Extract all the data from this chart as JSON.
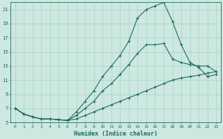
{
  "xlabel": "Humidex (Indice chaleur)",
  "bg_color": "#cce8e0",
  "line_color": "#1a6b5a",
  "grid_color": "#aed4c8",
  "xlim": [
    -0.5,
    23.5
  ],
  "ylim": [
    5,
    22
  ],
  "xticks": [
    0,
    1,
    2,
    3,
    4,
    5,
    6,
    7,
    8,
    9,
    10,
    11,
    12,
    13,
    14,
    15,
    16,
    17,
    18,
    19,
    20,
    21,
    22,
    23
  ],
  "yticks": [
    5,
    7,
    9,
    11,
    13,
    15,
    17,
    19,
    21
  ],
  "line1_x": [
    0,
    1,
    2,
    3,
    4,
    5,
    6,
    7,
    8,
    9,
    10,
    11,
    12,
    13,
    14,
    15,
    16,
    17,
    18,
    19,
    20,
    21,
    22,
    23
  ],
  "line1_y": [
    7.0,
    6.2,
    5.8,
    5.5,
    5.5,
    5.4,
    5.3,
    5.5,
    6.0,
    6.5,
    7.0,
    7.5,
    8.0,
    8.5,
    9.0,
    9.5,
    10.0,
    10.5,
    11.0,
    11.3,
    11.5,
    11.7,
    12.0,
    12.2
  ],
  "line2_x": [
    0,
    1,
    2,
    3,
    4,
    5,
    6,
    7,
    8,
    9,
    10,
    11,
    12,
    13,
    14,
    15,
    16,
    17,
    18,
    19,
    20,
    21,
    22,
    23
  ],
  "line2_y": [
    7.0,
    6.2,
    5.8,
    5.5,
    5.5,
    5.4,
    5.3,
    6.0,
    7.0,
    8.0,
    9.5,
    10.5,
    11.8,
    13.2,
    14.8,
    16.0,
    16.0,
    16.2,
    14.0,
    13.5,
    13.2,
    13.0,
    13.0,
    12.2
  ],
  "line3_x": [
    0,
    1,
    2,
    3,
    4,
    5,
    6,
    7,
    8,
    9,
    10,
    11,
    12,
    13,
    14,
    15,
    16,
    17,
    18,
    19,
    20,
    21,
    22,
    23
  ],
  "line3_y": [
    7.0,
    6.2,
    5.8,
    5.5,
    5.5,
    5.4,
    5.3,
    6.5,
    8.0,
    9.5,
    11.5,
    13.0,
    14.5,
    16.5,
    19.8,
    21.0,
    21.5,
    22.0,
    19.3,
    16.0,
    13.5,
    12.8,
    11.5,
    11.8
  ]
}
